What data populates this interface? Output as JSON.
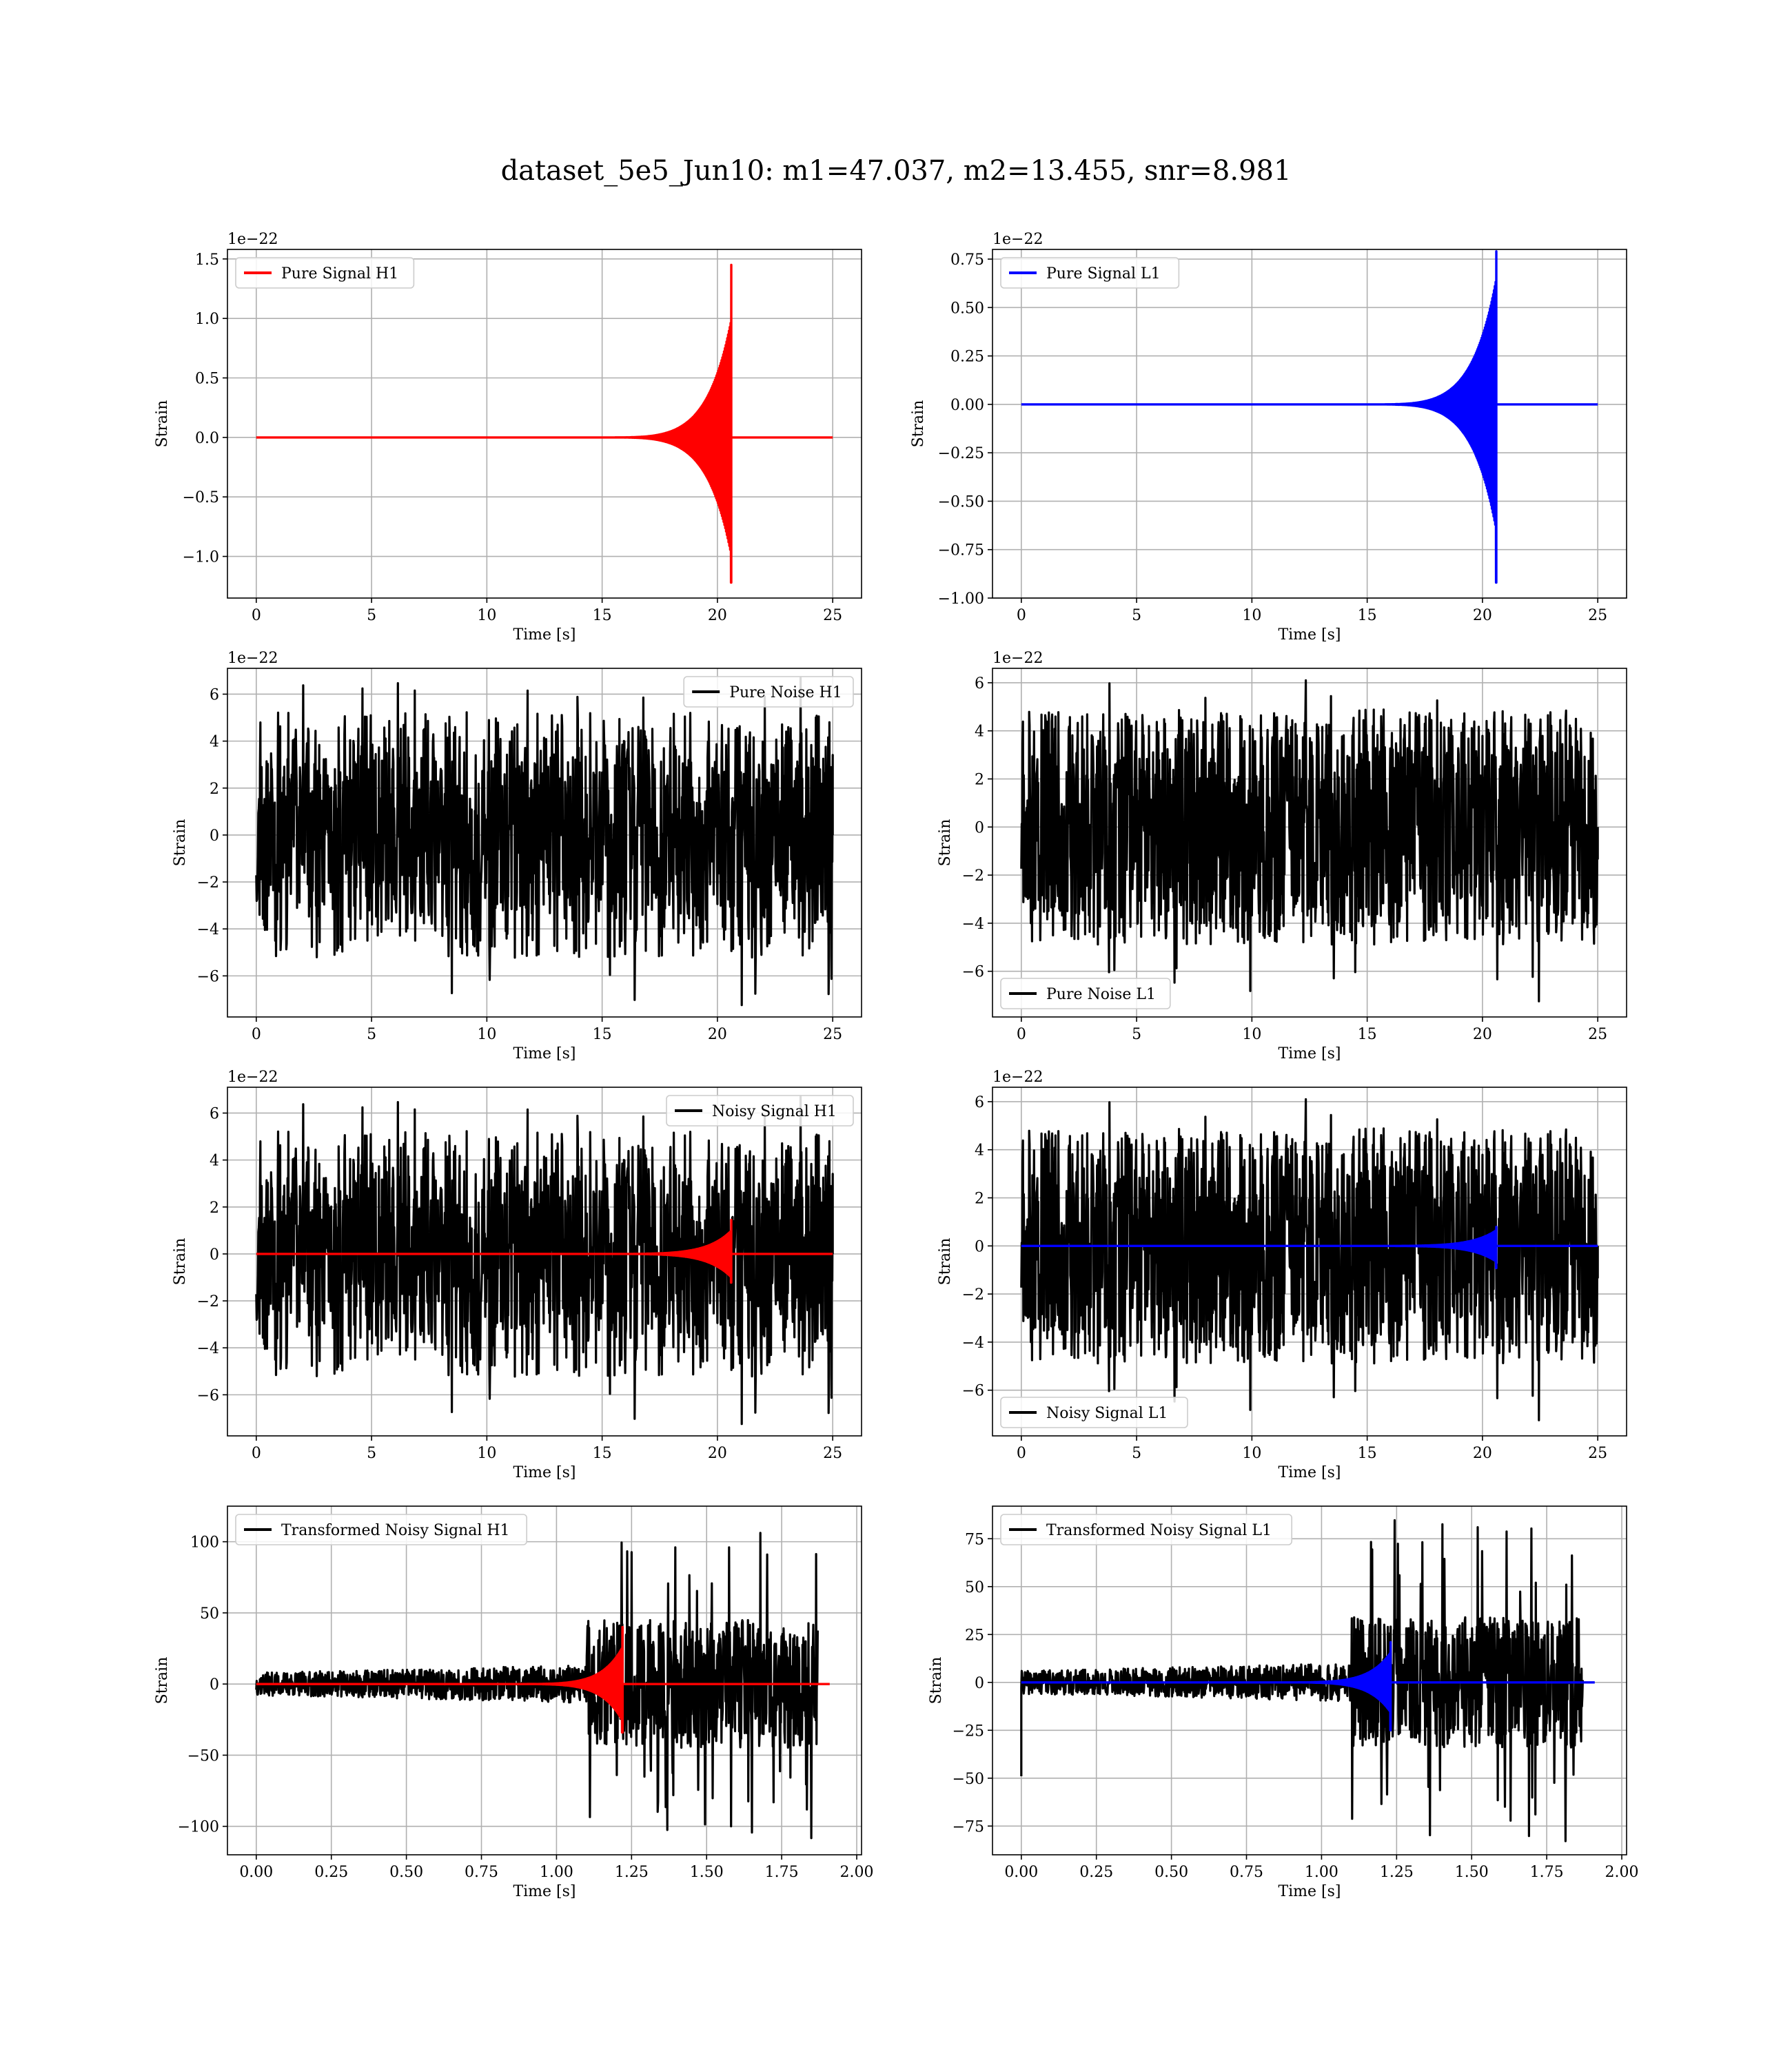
{
  "figure": {
    "title": "dataset_5e5_Jun10: m1=47.037, m2=13.455, snr=8.981"
  },
  "chart_data": [
    {
      "id": "pure-signal-h1",
      "type": "line",
      "xlabel": "Time [s]",
      "ylabel": "Strain",
      "offset_text": "1e−22",
      "xlim": [
        -1.25,
        26.25
      ],
      "ylim": [
        -1.35,
        1.58
      ],
      "xticks": [
        0,
        5,
        10,
        15,
        20,
        25
      ],
      "xtick_labels": [
        "0",
        "5",
        "10",
        "15",
        "20",
        "25"
      ],
      "yticks": [
        -1.0,
        -0.5,
        0.0,
        0.5,
        1.0,
        1.5
      ],
      "ytick_labels": [
        "−1.0",
        "−0.5",
        "0.0",
        "0.5",
        "1.0",
        "1.5"
      ],
      "grid": true,
      "legend_position": "upper left",
      "series": [
        {
          "name": "Pure Signal H1",
          "color": "#ff0000",
          "kind": "chirp",
          "x_range": [
            0,
            25
          ],
          "t_merge": 20.6,
          "peak_pos": 1.45,
          "peak_neg": -1.22,
          "plateau": 0.38,
          "onset": 15
        }
      ]
    },
    {
      "id": "pure-signal-l1",
      "type": "line",
      "xlabel": "Time [s]",
      "ylabel": "Strain",
      "offset_text": "1e−22",
      "xlim": [
        -1.25,
        26.25
      ],
      "ylim": [
        -1.0,
        0.8
      ],
      "xticks": [
        0,
        5,
        10,
        15,
        20,
        25
      ],
      "xtick_labels": [
        "0",
        "5",
        "10",
        "15",
        "20",
        "25"
      ],
      "yticks": [
        -1.0,
        -0.75,
        -0.5,
        -0.25,
        0.0,
        0.25,
        0.5,
        0.75
      ],
      "ytick_labels": [
        "−1.00",
        "−0.75",
        "−0.50",
        "−0.25",
        "0.00",
        "0.25",
        "0.50",
        "0.75"
      ],
      "grid": true,
      "legend_position": "upper left",
      "series": [
        {
          "name": "Pure Signal L1",
          "color": "#0000ff",
          "kind": "chirp",
          "x_range": [
            0,
            25
          ],
          "t_merge": 20.6,
          "peak_pos": 0.79,
          "peak_neg": -0.92,
          "plateau": 0.25,
          "onset": 15
        }
      ]
    },
    {
      "id": "pure-noise-h1",
      "type": "line",
      "xlabel": "Time [s]",
      "ylabel": "Strain",
      "offset_text": "1e−22",
      "xlim": [
        -1.25,
        26.25
      ],
      "ylim": [
        -7.75,
        7.1
      ],
      "xticks": [
        0,
        5,
        10,
        15,
        20,
        25
      ],
      "xtick_labels": [
        "0",
        "5",
        "10",
        "15",
        "20",
        "25"
      ],
      "yticks": [
        -6,
        -4,
        -2,
        0,
        2,
        4,
        6
      ],
      "ytick_labels": [
        "−6",
        "−4",
        "−2",
        "0",
        "2",
        "4",
        "6"
      ],
      "grid": true,
      "legend_position": "upper right",
      "series": [
        {
          "name": "Pure Noise H1",
          "color": "#000000",
          "kind": "noise",
          "x_range": [
            0,
            25
          ],
          "band": 3.3,
          "max": 6.8,
          "min": -7.3,
          "seed": 11
        }
      ]
    },
    {
      "id": "pure-noise-l1",
      "type": "line",
      "xlabel": "Time [s]",
      "ylabel": "Strain",
      "offset_text": "1e−22",
      "xlim": [
        -1.25,
        26.25
      ],
      "ylim": [
        -7.9,
        6.6
      ],
      "xticks": [
        0,
        5,
        10,
        15,
        20,
        25
      ],
      "xtick_labels": [
        "0",
        "5",
        "10",
        "15",
        "20",
        "25"
      ],
      "yticks": [
        -6,
        -4,
        -2,
        0,
        2,
        4,
        6
      ],
      "ytick_labels": [
        "−6",
        "−4",
        "−2",
        "0",
        "2",
        "4",
        "6"
      ],
      "grid": true,
      "legend_position": "lower left",
      "series": [
        {
          "name": "Pure Noise L1",
          "color": "#000000",
          "kind": "noise",
          "x_range": [
            0,
            25
          ],
          "band": 3.4,
          "max": 6.1,
          "min": -7.3,
          "seed": 23
        }
      ]
    },
    {
      "id": "noisy-signal-h1",
      "type": "line",
      "xlabel": "Time [s]",
      "ylabel": "Strain",
      "offset_text": "1e−22",
      "xlim": [
        -1.25,
        26.25
      ],
      "ylim": [
        -7.75,
        7.1
      ],
      "xticks": [
        0,
        5,
        10,
        15,
        20,
        25
      ],
      "xtick_labels": [
        "0",
        "5",
        "10",
        "15",
        "20",
        "25"
      ],
      "yticks": [
        -6,
        -4,
        -2,
        0,
        2,
        4,
        6
      ],
      "ytick_labels": [
        "−6",
        "−4",
        "−2",
        "0",
        "2",
        "4",
        "6"
      ],
      "grid": true,
      "legend_position": "upper right",
      "series": [
        {
          "name": "Noisy Signal H1",
          "color": "#000000",
          "kind": "noise",
          "x_range": [
            0,
            25
          ],
          "band": 3.3,
          "max": 6.8,
          "min": -7.3,
          "seed": 11
        },
        {
          "name": "",
          "color": "#ff0000",
          "kind": "chirp",
          "x_range": [
            0,
            25
          ],
          "t_merge": 20.6,
          "peak_pos": 1.45,
          "peak_neg": -1.22,
          "plateau": 0.38,
          "onset": 15
        }
      ]
    },
    {
      "id": "noisy-signal-l1",
      "type": "line",
      "xlabel": "Time [s]",
      "ylabel": "Strain",
      "offset_text": "1e−22",
      "xlim": [
        -1.25,
        26.25
      ],
      "ylim": [
        -7.9,
        6.6
      ],
      "xticks": [
        0,
        5,
        10,
        15,
        20,
        25
      ],
      "xtick_labels": [
        "0",
        "5",
        "10",
        "15",
        "20",
        "25"
      ],
      "yticks": [
        -6,
        -4,
        -2,
        0,
        2,
        4,
        6
      ],
      "ytick_labels": [
        "−6",
        "−4",
        "−2",
        "0",
        "2",
        "4",
        "6"
      ],
      "grid": true,
      "legend_position": "lower left",
      "series": [
        {
          "name": "Noisy Signal L1",
          "color": "#000000",
          "kind": "noise",
          "x_range": [
            0,
            25
          ],
          "band": 3.4,
          "max": 6.1,
          "min": -7.3,
          "seed": 23
        },
        {
          "name": "",
          "color": "#0000ff",
          "kind": "chirp",
          "x_range": [
            0,
            25
          ],
          "t_merge": 20.6,
          "peak_pos": 0.79,
          "peak_neg": -0.92,
          "plateau": 0.25,
          "onset": 15
        }
      ]
    },
    {
      "id": "transformed-noisy-signal-h1",
      "type": "line",
      "xlabel": "Time [s]",
      "ylabel": "Strain",
      "offset_text": "",
      "xlim": [
        -0.096,
        2.016
      ],
      "ylim": [
        -120,
        125
      ],
      "xticks": [
        0,
        0.25,
        0.5,
        0.75,
        1.0,
        1.25,
        1.5,
        1.75,
        2.0
      ],
      "xtick_labels": [
        "0.00",
        "0.25",
        "0.50",
        "0.75",
        "1.00",
        "1.25",
        "1.50",
        "1.75",
        "2.00"
      ],
      "yticks": [
        -100,
        -50,
        0,
        50,
        100
      ],
      "ytick_labels": [
        "−100",
        "−50",
        "0",
        "50",
        "100"
      ],
      "grid": true,
      "legend_position": "upper left",
      "series": [
        {
          "name": "Transformed Noisy Signal H1",
          "color": "#000000",
          "kind": "transformed",
          "x_range": [
            0,
            1.87
          ],
          "step_t": 1.1,
          "low_band": 8,
          "high_band": 45,
          "max": 116,
          "min": -110,
          "seed": 37
        },
        {
          "name": "",
          "color": "#ff0000",
          "kind": "chirp",
          "x_range": [
            0,
            1.91
          ],
          "t_merge": 1.22,
          "peak_pos": 40,
          "peak_neg": -34,
          "plateau": 10,
          "onset": 0.85
        }
      ]
    },
    {
      "id": "transformed-noisy-signal-l1",
      "type": "line",
      "xlabel": "Time [s]",
      "ylabel": "Strain",
      "offset_text": "",
      "xlim": [
        -0.096,
        2.016
      ],
      "ylim": [
        -90,
        92
      ],
      "xticks": [
        0,
        0.25,
        0.5,
        0.75,
        1.0,
        1.25,
        1.5,
        1.75,
        2.0
      ],
      "xtick_labels": [
        "0.00",
        "0.25",
        "0.50",
        "0.75",
        "1.00",
        "1.25",
        "1.50",
        "1.75",
        "2.00"
      ],
      "yticks": [
        -75,
        -50,
        -25,
        0,
        25,
        50,
        75
      ],
      "ytick_labels": [
        "−75",
        "−50",
        "−25",
        "0",
        "25",
        "50",
        "75"
      ],
      "grid": true,
      "legend_position": "upper left",
      "series": [
        {
          "name": "Transformed Noisy Signal L1",
          "color": "#000000",
          "kind": "transformed",
          "x_range": [
            0,
            1.87
          ],
          "step_t": 1.1,
          "low_band": 6,
          "high_band": 34,
          "max": 85,
          "min": -84,
          "seed": 41,
          "spike_start": -49
        },
        {
          "name": "",
          "color": "#0000ff",
          "kind": "chirp",
          "x_range": [
            0,
            1.91
          ],
          "t_merge": 1.23,
          "peak_pos": 21,
          "peak_neg": -25,
          "plateau": 6,
          "onset": 0.85
        }
      ]
    }
  ]
}
